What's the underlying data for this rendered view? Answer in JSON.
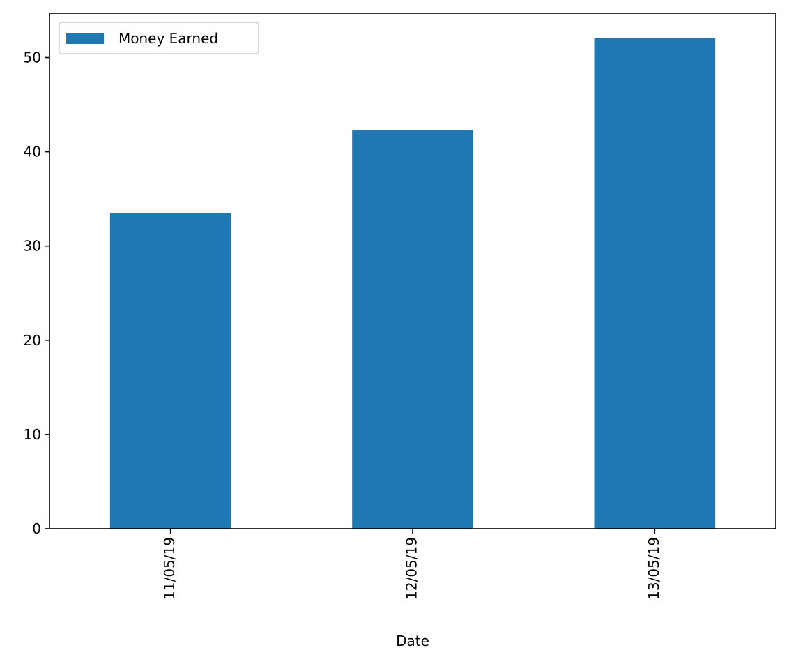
{
  "chart_data": {
    "type": "bar",
    "categories": [
      "11/05/19",
      "12/05/19",
      "13/05/19"
    ],
    "series": [
      {
        "name": "Money Earned",
        "values": [
          33.5,
          42.3,
          52.1
        ],
        "color": "#1f77b4"
      }
    ],
    "title": "",
    "xlabel": "Date",
    "ylabel": "",
    "ylim": [
      0,
      54.7
    ],
    "yticks": [
      0,
      10,
      20,
      30,
      40,
      50
    ],
    "grid": false,
    "legend_position": "top-left",
    "x_tick_rotation": "vertical"
  }
}
